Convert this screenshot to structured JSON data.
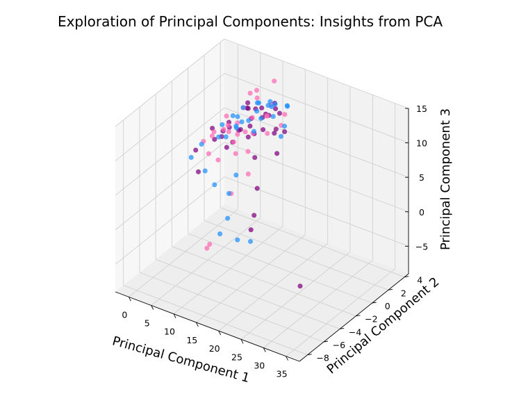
{
  "chart_data": {
    "type": "scatter",
    "title": "Exploration of Principal Components: Insights from PCA",
    "xlabel": "Principal Component 1",
    "ylabel": "Principal Component 2",
    "zlabel": "Principal Component 3",
    "xticks": [
      0,
      5,
      10,
      15,
      20,
      25,
      30,
      35
    ],
    "yticks": [
      -8,
      -6,
      -4,
      -2,
      0,
      2,
      4
    ],
    "zticks": [
      -5,
      0,
      5,
      10,
      15
    ],
    "xlim": [
      -3,
      38
    ],
    "ylim": [
      -9,
      4.5
    ],
    "zlim": [
      -9,
      15
    ],
    "grid": true,
    "colors": {
      "purple": "#800080",
      "pink": "#ff69b4",
      "blue": "#1e90ff",
      "pane_light": "#f7f7f7",
      "pane_mid": "#eeeeee",
      "pane_dark": "#f2f2f2",
      "grid": "#d0d0d0"
    },
    "series": [
      {
        "color": "#800080",
        "points": [
          [
            1.5,
            0.5,
            6.9
          ],
          [
            3.0,
            1.0,
            6.4
          ],
          [
            4.5,
            0.0,
            6.9
          ],
          [
            6.0,
            1.5,
            6.9
          ],
          [
            7.5,
            2.0,
            8.4
          ],
          [
            9.0,
            1.0,
            8.6
          ],
          [
            10.5,
            2.5,
            9.1
          ],
          [
            2.5,
            2.0,
            6.6
          ],
          [
            5.0,
            3.0,
            8.3
          ],
          [
            8.0,
            3.0,
            9.1
          ],
          [
            11.0,
            1.5,
            8.1
          ],
          [
            12.0,
            3.0,
            9.3
          ],
          [
            6.5,
            -0.5,
            6.3
          ],
          [
            3.5,
            1.5,
            6.6
          ],
          [
            9.5,
            0.5,
            7.6
          ],
          [
            7.0,
            2.8,
            8.9
          ],
          [
            13.0,
            2.0,
            8.2
          ],
          [
            4.0,
            3.5,
            8.4
          ],
          [
            14.0,
            2.5,
            7.6
          ],
          [
            10.0,
            3.5,
            9.8
          ],
          [
            0.5,
            -1.0,
            4.9
          ],
          [
            5.5,
            0.8,
            5.6
          ],
          [
            8.5,
            1.8,
            6.6
          ],
          [
            11.5,
            0.2,
            5.4
          ],
          [
            12.5,
            1.0,
            11.2
          ],
          [
            2.0,
            -1.5,
            2.6
          ],
          [
            15.0,
            1.0,
            6.1
          ],
          [
            16.0,
            -2.0,
            4.1
          ],
          [
            18.0,
            -3.5,
            2.1
          ],
          [
            20.0,
            -5.0,
            1.9
          ],
          [
            36.0,
            -7.8,
            0.3
          ],
          [
            3.8,
            -0.5,
            6.8
          ],
          [
            7.2,
            0.6,
            7.9
          ],
          [
            6.2,
            2.2,
            9.4
          ],
          [
            9.8,
            2.1,
            9.0
          ],
          [
            11.8,
            2.6,
            10.3
          ],
          [
            13.5,
            1.5,
            8.2
          ]
        ]
      },
      {
        "color": "#ff69b4",
        "points": [
          [
            1.0,
            1.0,
            5.8
          ],
          [
            2.0,
            0.2,
            6.2
          ],
          [
            3.5,
            2.5,
            6.3
          ],
          [
            5.0,
            0.5,
            8.2
          ],
          [
            6.5,
            1.8,
            6.4
          ],
          [
            8.0,
            0.0,
            8.1
          ],
          [
            9.5,
            2.8,
            8.5
          ],
          [
            11.0,
            2.0,
            9.6
          ],
          [
            12.5,
            1.2,
            8.2
          ],
          [
            4.0,
            3.8,
            9.5
          ],
          [
            6.0,
            3.5,
            10.7
          ],
          [
            7.5,
            1.0,
            10.9
          ],
          [
            10.0,
            0.8,
            8.0
          ],
          [
            13.5,
            2.8,
            9.7
          ],
          [
            2.5,
            -0.5,
            4.4
          ],
          [
            5.5,
            -1.0,
            4.7
          ],
          [
            8.5,
            -0.5,
            5.9
          ],
          [
            0.8,
            -0.2,
            5.5
          ],
          [
            14.5,
            1.8,
            9.3
          ],
          [
            9.0,
            4.0,
            12.3
          ],
          [
            3.2,
            1.6,
            5.8
          ],
          [
            11.8,
            -0.8,
            7.3
          ],
          [
            4.2,
            0.4,
            7.5
          ],
          [
            7.0,
            3.0,
            10.3
          ],
          [
            10.8,
            2.6,
            10.6
          ],
          [
            14.0,
            -2.0,
            5.7
          ],
          [
            12.0,
            -3.0,
            3.3
          ],
          [
            12.0,
            -6.0,
            -1.8
          ],
          [
            13.5,
            -6.5,
            -0.4
          ],
          [
            1.6,
            2.2,
            7.1
          ],
          [
            6.8,
            0.2,
            6.5
          ],
          [
            8.8,
            1.4,
            9.4
          ]
        ]
      },
      {
        "color": "#1e90ff",
        "points": [
          [
            0.0,
            0.0,
            4.7
          ],
          [
            1.0,
            2.0,
            5.9
          ],
          [
            2.0,
            1.0,
            5.3
          ],
          [
            3.0,
            2.8,
            6.8
          ],
          [
            4.0,
            0.8,
            6.0
          ],
          [
            5.0,
            2.2,
            7.1
          ],
          [
            6.0,
            1.0,
            7.6
          ],
          [
            7.0,
            3.2,
            9.4
          ],
          [
            8.0,
            2.4,
            9.2
          ],
          [
            9.0,
            3.5,
            9.8
          ],
          [
            10.0,
            1.8,
            9.2
          ],
          [
            11.0,
            3.0,
            10.4
          ],
          [
            12.0,
            2.2,
            9.6
          ],
          [
            13.0,
            3.4,
            10.2
          ],
          [
            14.0,
            2.5,
            8.4
          ],
          [
            15.0,
            1.5,
            8.1
          ],
          [
            -0.5,
            -1.0,
            3.6
          ],
          [
            3.5,
            -1.5,
            3.1
          ],
          [
            6.5,
            -2.0,
            2.3
          ],
          [
            9.5,
            -1.0,
            3.5
          ],
          [
            11.5,
            -3.0,
            3.2
          ],
          [
            13.0,
            -4.0,
            0.9
          ],
          [
            14.0,
            -5.5,
            0.3
          ],
          [
            17.0,
            -5.0,
            -0.3
          ],
          [
            19.0,
            -4.5,
            -0.5
          ],
          [
            2.8,
            3.6,
            7.3
          ],
          [
            5.6,
            3.8,
            8.5
          ],
          [
            8.6,
            3.9,
            8.6
          ],
          [
            10.6,
            0.6,
            8.6
          ],
          [
            12.6,
            3.6,
            10.0
          ],
          [
            1.6,
            3.0,
            6.4
          ],
          [
            7.6,
            1.6,
            8.5
          ],
          [
            4.8,
            1.6,
            7.0
          ],
          [
            9.8,
            2.8,
            10.1
          ]
        ]
      }
    ]
  }
}
